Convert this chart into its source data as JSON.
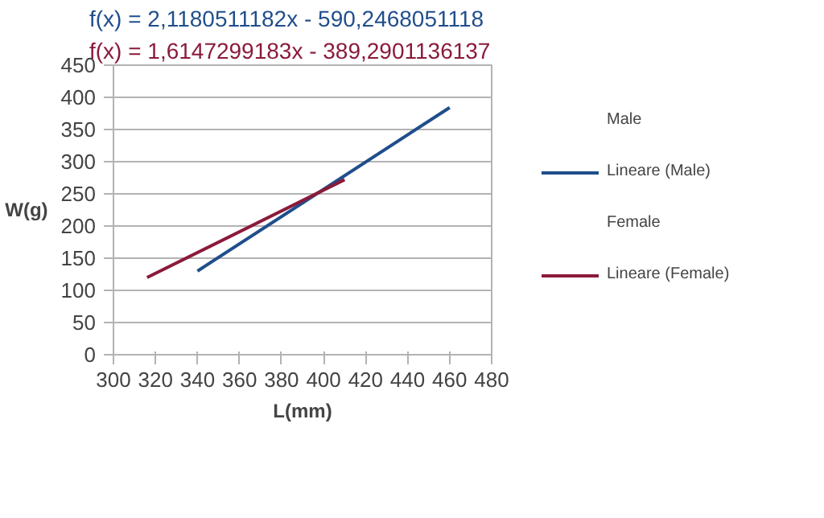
{
  "chart_data": {
    "type": "line",
    "xlabel": "L(mm)",
    "ylabel": "W(g)",
    "xlim": [
      300,
      480
    ],
    "xticks": [
      300,
      320,
      340,
      360,
      380,
      400,
      420,
      440,
      460,
      480
    ],
    "ylim": [
      0,
      450
    ],
    "yticks": [
      0,
      50,
      100,
      150,
      200,
      250,
      300,
      350,
      400,
      450
    ],
    "grid": "y",
    "legend": "right",
    "series": [
      {
        "name": "Lineare (Male)",
        "color": "#1f4e8c",
        "x": [
          340,
          460
        ],
        "values": [
          130,
          384
        ]
      },
      {
        "name": "Lineare (Female)",
        "color": "#8b1a3a",
        "x": [
          316,
          410
        ],
        "values": [
          120,
          272
        ]
      }
    ],
    "annotations": [
      "f(x) = 2,1180511182x - 590,2468051118",
      "f(x) = 1,6147299183x - 389,2901136137",
      "Male",
      "Female"
    ]
  }
}
